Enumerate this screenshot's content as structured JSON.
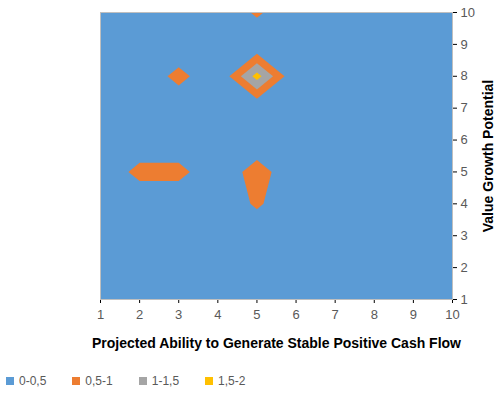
{
  "chart_data": {
    "type": "contour",
    "x_label": "Projected Ability to Generate Stable Positive Cash Flow",
    "y_label": "Value Growth Potential",
    "x": [
      1,
      2,
      3,
      4,
      5,
      6,
      7,
      8,
      9,
      10
    ],
    "y": [
      1,
      2,
      3,
      4,
      5,
      6,
      7,
      8,
      9,
      10
    ],
    "cells": [
      [
        0,
        0,
        0,
        0,
        0,
        0,
        0,
        0,
        0,
        0
      ],
      [
        0,
        0,
        0,
        0,
        0,
        0,
        0,
        0,
        0,
        0
      ],
      [
        0,
        0,
        0,
        0,
        0,
        0,
        0,
        0,
        0,
        0
      ],
      [
        0,
        0,
        0,
        0,
        0.6,
        0,
        0,
        0,
        0,
        0
      ],
      [
        0,
        0.7,
        0.7,
        0,
        0.8,
        0,
        0,
        0,
        0,
        0
      ],
      [
        0,
        0,
        0,
        0,
        0,
        0,
        0,
        0,
        0,
        0
      ],
      [
        0,
        0,
        0,
        0,
        0,
        0,
        0,
        0,
        0,
        0
      ],
      [
        0,
        0,
        0.7,
        0,
        1.7,
        0,
        0,
        0,
        0,
        0
      ],
      [
        0,
        0,
        0,
        0,
        0,
        0,
        0,
        0,
        0,
        0
      ],
      [
        0,
        0,
        0,
        0,
        0.6,
        0,
        0,
        0,
        0,
        0
      ]
    ],
    "xlim": [
      1,
      10
    ],
    "xticks": [
      1,
      2,
      3,
      4,
      5,
      6,
      7,
      8,
      9,
      10
    ],
    "ylim": [
      1,
      10
    ],
    "yticks": [
      1,
      2,
      3,
      4,
      5,
      6,
      7,
      8,
      9,
      10
    ],
    "bands": [
      {
        "label": "0-0,5",
        "lo": 0,
        "hi": 0.5,
        "color": "#5b9bd5"
      },
      {
        "label": "0,5-1",
        "lo": 0.5,
        "hi": 1,
        "color": "#ed7d31"
      },
      {
        "label": "1-1,5",
        "lo": 1,
        "hi": 1.5,
        "color": "#a5a5a5"
      },
      {
        "label": "1,5-2",
        "lo": 1.5,
        "hi": 2,
        "color": "#ffc000"
      }
    ],
    "legend": "bottom"
  }
}
